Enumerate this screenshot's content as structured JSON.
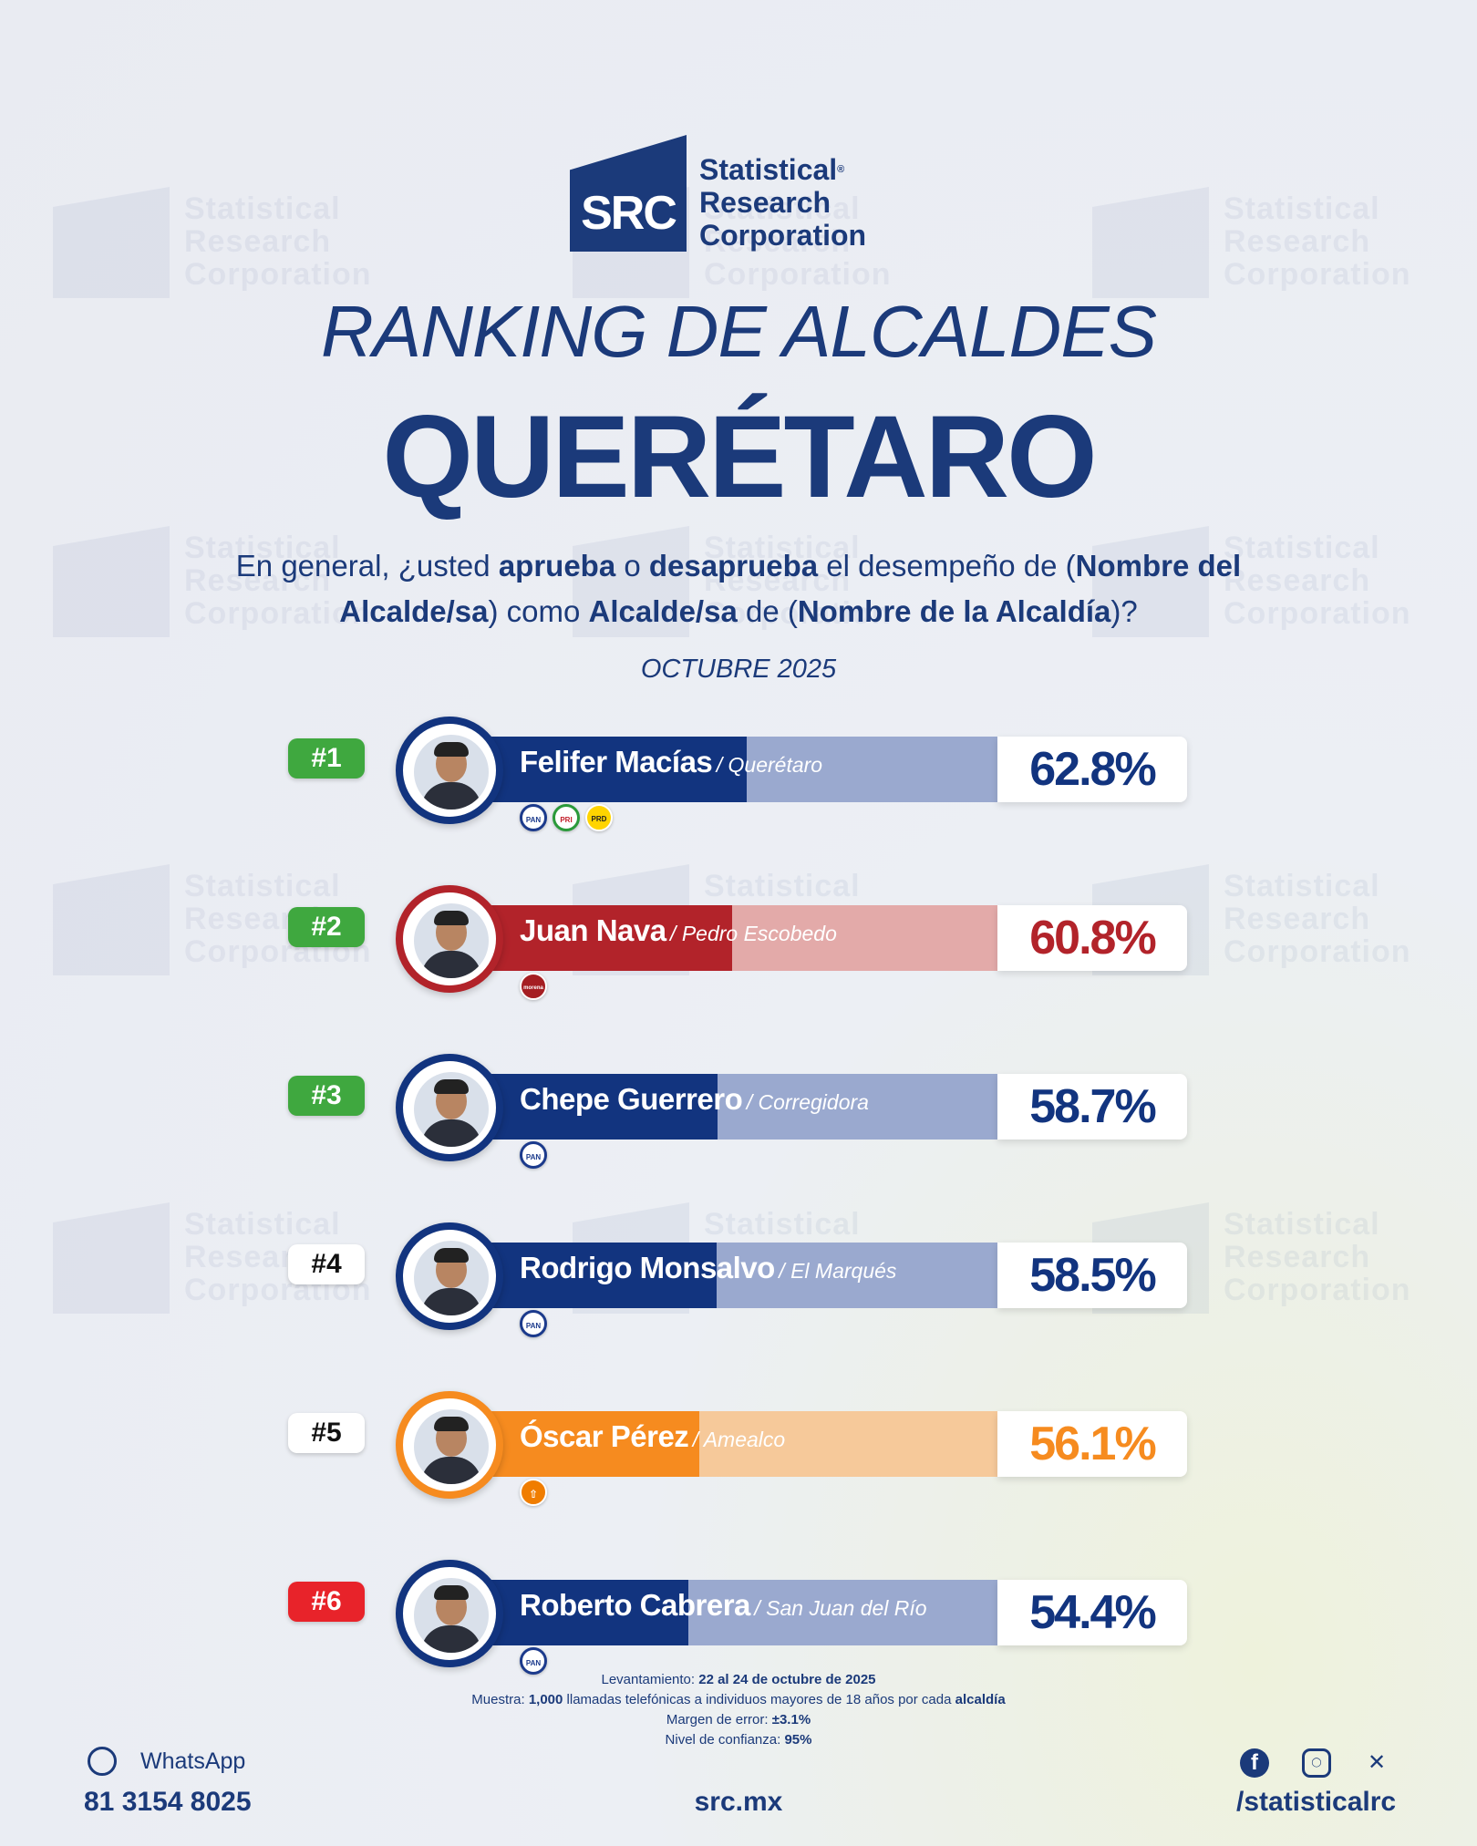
{
  "brand": {
    "mark": "SRC",
    "line1": "Statistical",
    "line2": "Research",
    "line3": "Corporation",
    "registered": "®"
  },
  "title": "RANKING DE ALCALDES",
  "subtitle": "QUERÉTARO",
  "question": {
    "p1": "En general, ¿usted ",
    "b1": "aprueba",
    "p2": " o ",
    "b2": "desaprueba",
    "p3": " el desempeño de (",
    "b3": "Nombre del Alcalde/sa",
    "p4": ") como ",
    "b4": "Alcalde/sa",
    "p5": " de (",
    "b5": "Nombre de la Alcaldía",
    "p6": ")?"
  },
  "period": "OCTUBRE 2025",
  "colors": {
    "navy": "#1b3a7a",
    "pan_blue": "#12347f",
    "morena_red": "#b2232a",
    "mc_orange": "#f68b1f",
    "rank_green": "#3fa83f",
    "rank_red": "#e8232a"
  },
  "chart_data": {
    "type": "bar",
    "categories": [
      "Felifer Macías",
      "Juan Nava",
      "Chepe Guerrero",
      "Rodrigo Monsalvo",
      "Óscar Pérez",
      "Roberto Cabrera"
    ],
    "values": [
      62.8,
      60.8,
      58.7,
      58.5,
      56.1,
      54.4
    ],
    "rows": [
      {
        "rank": "#1",
        "rank_color": "green",
        "name": "Felifer Macías",
        "municipality": "/ Querétaro",
        "value": 62.8,
        "label": "62.8%",
        "theme": "blue",
        "parties": [
          "PAN",
          "PRI",
          "PRD"
        ]
      },
      {
        "rank": "#2",
        "rank_color": "green",
        "name": "Juan Nava",
        "municipality": "/ Pedro Escobedo",
        "value": 60.8,
        "label": "60.8%",
        "theme": "red",
        "parties": [
          "morena"
        ]
      },
      {
        "rank": "#3",
        "rank_color": "green",
        "name": "Chepe Guerrero",
        "municipality": "/ Corregidora",
        "value": 58.7,
        "label": "58.7%",
        "theme": "blue",
        "parties": [
          "PAN"
        ]
      },
      {
        "rank": "#4",
        "rank_color": "white",
        "name": "Rodrigo Monsalvo",
        "municipality": "/ El Marqués",
        "value": 58.5,
        "label": "58.5%",
        "theme": "blue",
        "parties": [
          "PAN"
        ]
      },
      {
        "rank": "#5",
        "rank_color": "white",
        "name": "Óscar Pérez",
        "municipality": "/ Amealco",
        "value": 56.1,
        "label": "56.1%",
        "theme": "orange",
        "parties": [
          "MC"
        ]
      },
      {
        "rank": "#6",
        "rank_color": "red",
        "name": "Roberto Cabrera",
        "municipality": "/ San Juan del Río",
        "value": 54.4,
        "label": "54.4%",
        "theme": "blue",
        "parties": [
          "PAN"
        ]
      }
    ]
  },
  "methodology": {
    "l1a": "Levantamiento: ",
    "l1b": "22 al 24 de octubre de 2025",
    "l2a": "Muestra: ",
    "l2b": "1,000",
    "l2c": " llamadas telefónicas a individuos mayores de 18 años por cada ",
    "l2d": "alcaldía",
    "l3a": "Margen de error: ",
    "l3b": "±3.1%",
    "l4a": "Nivel de confianza: ",
    "l4b": "95%"
  },
  "footer": {
    "whatsapp_label": "WhatsApp",
    "phone": "81 3154 8025",
    "site": "src.mx",
    "handle": "/statisticalrc"
  }
}
